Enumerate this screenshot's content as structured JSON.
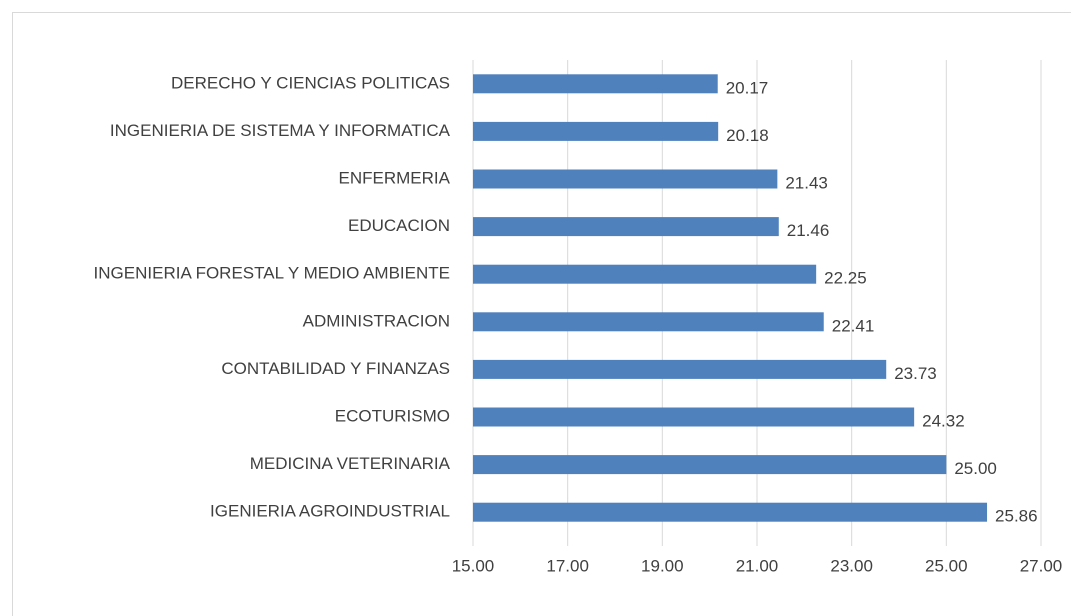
{
  "chart_data": {
    "type": "bar",
    "orientation": "horizontal",
    "categories": [
      "DERECHO Y CIENCIAS POLITICAS",
      "INGENIERIA DE SISTEMA Y INFORMATICA",
      "ENFERMERIA",
      "EDUCACION",
      "INGENIERIA FORESTAL Y MEDIO AMBIENTE",
      "ADMINISTRACION",
      "CONTABILIDAD Y FINANZAS",
      "ECOTURISMO",
      "MEDICINA VETERINARIA",
      "IGENIERIA AGROINDUSTRIAL"
    ],
    "values": [
      20.17,
      20.18,
      21.43,
      21.46,
      22.25,
      22.41,
      23.73,
      24.32,
      25,
      25.86
    ],
    "value_labels": [
      "20.17",
      "20.18",
      "21.43",
      "21.46",
      "22.25",
      "22.41",
      "23.73",
      "24.32",
      "25.00",
      "25.86"
    ],
    "color": "#4f81bd",
    "xlim": [
      15,
      27
    ],
    "xticks": [
      {
        "value": 15,
        "label": "15.00"
      },
      {
        "value": 17,
        "label": "17.00"
      },
      {
        "value": 19,
        "label": "19.00"
      },
      {
        "value": 21,
        "label": "21.00"
      },
      {
        "value": 23,
        "label": "23.00"
      },
      {
        "value": 25,
        "label": "25.00"
      },
      {
        "value": 27,
        "label": "27.00"
      }
    ],
    "grid": true
  }
}
